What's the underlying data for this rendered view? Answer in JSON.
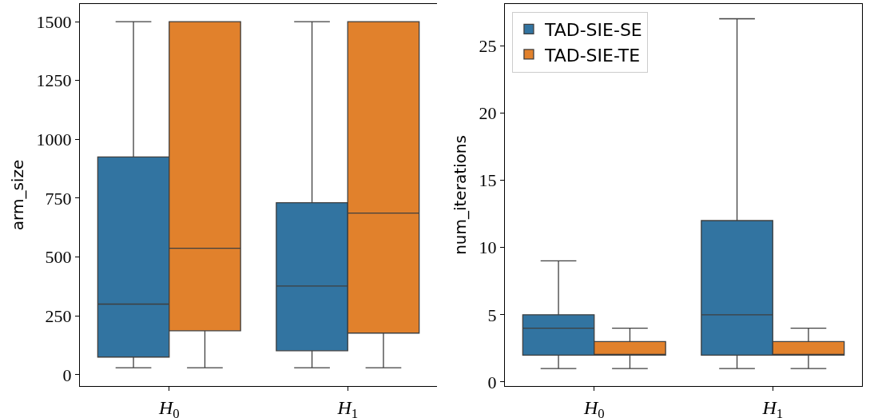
{
  "chart_data": [
    {
      "type": "box",
      "categories": [
        "H$_{0}$",
        "H$_{1}$"
      ],
      "ylabel": "arm_size",
      "ylim": [
        -48,
        1575
      ],
      "yticks": [
        0,
        250,
        500,
        750,
        1000,
        1250,
        1500
      ],
      "grid": false,
      "legend": false,
      "series": [
        {
          "color": "#3274a1",
          "boxes": [
            {
              "low": 30,
              "q1": 75,
              "median": 300,
              "q3": 925,
              "high": 1500
            },
            {
              "low": 30,
              "q1": 102,
              "median": 377,
              "q3": 731,
              "high": 1500
            }
          ]
        },
        {
          "color": "#e1812c",
          "boxes": [
            {
              "low": 30,
              "q1": 187,
              "median": 537,
              "q3": 1500,
              "high": 1500
            },
            {
              "low": 30,
              "q1": 177,
              "median": 687,
              "q3": 1500,
              "high": 1500
            }
          ]
        }
      ]
    },
    {
      "type": "box",
      "categories": [
        "H$_{0}$",
        "H$_{1}$"
      ],
      "ylabel": "num_iterations",
      "ylim": [
        -0.3,
        28.1
      ],
      "yticks": [
        0,
        5,
        10,
        15,
        20,
        25
      ],
      "grid": false,
      "legend": "top left",
      "series": [
        {
          "name": "TAD-SIE-SE",
          "color": "#3274a1",
          "boxes": [
            {
              "low": 1,
              "q1": 2,
              "median": 4,
              "q3": 5,
              "high": 9
            },
            {
              "low": 1,
              "q1": 2,
              "median": 5,
              "q3": 12,
              "high": 27
            }
          ]
        },
        {
          "name": "TAD-SIE-TE",
          "color": "#e1812c",
          "boxes": [
            {
              "low": 1,
              "q1": 2,
              "median": 2,
              "q3": 3,
              "high": 4
            },
            {
              "low": 1,
              "q1": 2,
              "median": 2,
              "q3": 3,
              "high": 4
            }
          ]
        }
      ]
    }
  ]
}
